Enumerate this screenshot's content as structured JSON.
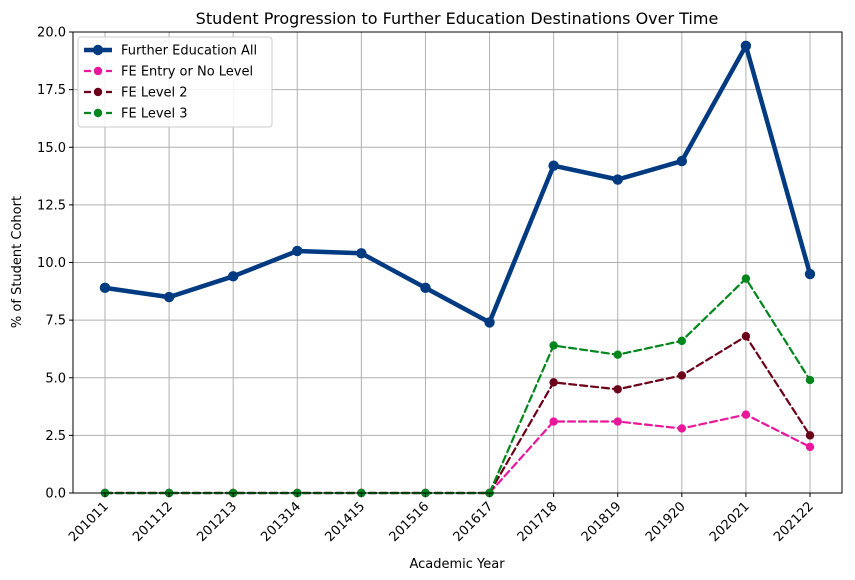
{
  "chart_data": {
    "type": "line",
    "title": "Student Progression to Further Education Destinations Over Time",
    "xlabel": "Academic Year",
    "ylabel": "% of Student Cohort",
    "ylim": [
      0,
      20
    ],
    "yticks": [
      "0.0",
      "2.5",
      "5.0",
      "7.5",
      "10.0",
      "12.5",
      "15.0",
      "17.5",
      "20.0"
    ],
    "grid": true,
    "legend_position": "upper-left",
    "categories": [
      "201011",
      "201112",
      "201213",
      "201314",
      "201415",
      "201516",
      "201617",
      "201718",
      "201819",
      "201920",
      "202021",
      "202122"
    ],
    "series": [
      {
        "name": "Further Education All",
        "color": "#003a80",
        "style": "solid-thick",
        "values": [
          8.9,
          8.5,
          9.4,
          10.5,
          10.4,
          8.9,
          7.4,
          14.2,
          13.6,
          14.4,
          19.4,
          9.5
        ]
      },
      {
        "name": "FE Entry or No Level",
        "color": "#e8179b",
        "style": "dashed",
        "values": [
          0,
          0,
          0,
          0,
          0,
          0,
          0,
          3.1,
          3.1,
          2.8,
          3.4,
          2.0
        ]
      },
      {
        "name": "FE Level 2",
        "color": "#6b0019",
        "style": "dashed",
        "values": [
          0,
          0,
          0,
          0,
          0,
          0,
          0,
          4.8,
          4.5,
          5.1,
          6.8,
          2.5
        ]
      },
      {
        "name": "FE Level 3",
        "color": "#00861c",
        "style": "dashed",
        "values": [
          0,
          0,
          0,
          0,
          0,
          0,
          0,
          6.4,
          6.0,
          6.6,
          9.3,
          4.9
        ]
      }
    ]
  }
}
